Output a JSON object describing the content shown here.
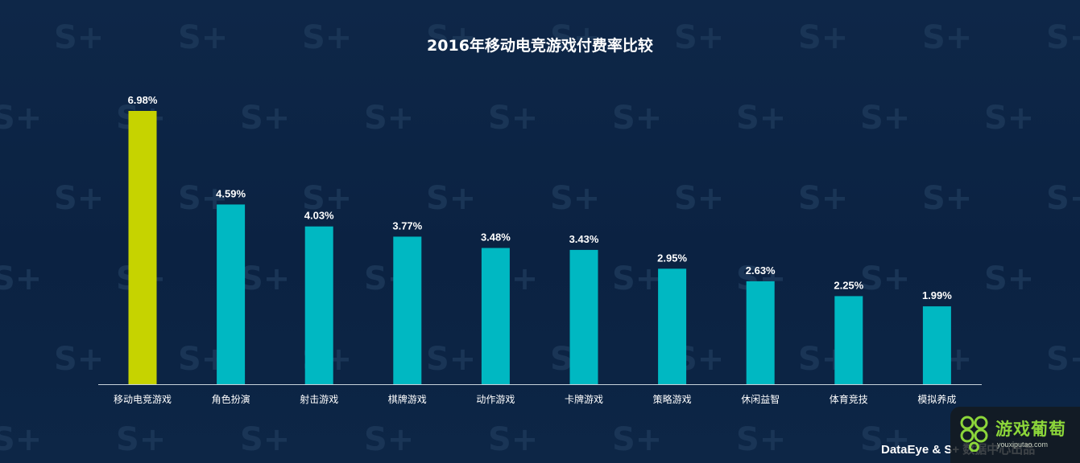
{
  "chart_data": {
    "type": "bar",
    "title": "2016年移动电竞游戏付费率比较",
    "categories": [
      "移动电竞游戏",
      "角色扮演",
      "射击游戏",
      "棋牌游戏",
      "动作游戏",
      "卡牌游戏",
      "策略游戏",
      "休闲益智",
      "体育竞技",
      "模拟养成"
    ],
    "values": [
      6.98,
      4.59,
      4.03,
      3.77,
      3.48,
      3.43,
      2.95,
      2.63,
      2.25,
      1.99
    ],
    "data_labels": [
      "6.98%",
      "4.59%",
      "4.03%",
      "3.77%",
      "3.48%",
      "3.43%",
      "2.95%",
      "2.63%",
      "2.25%",
      "1.99%"
    ],
    "unit": "%",
    "xlabel": "",
    "ylabel": "",
    "ylim": [
      0,
      7.3
    ],
    "grid": false,
    "legend": "none",
    "highlight_index": 0,
    "colors": {
      "highlight": "#c6d300",
      "default": "#00b8c2",
      "axis": "#c8d2dc",
      "background": "#0c2444"
    }
  },
  "footer": {
    "credit": "DataEye & S+ 数据中心出品"
  },
  "watermark": {
    "text": "S+"
  },
  "site_logo": {
    "name": "游戏葡萄",
    "url_text": "youxiputao.com",
    "color": "#8cd63a"
  }
}
